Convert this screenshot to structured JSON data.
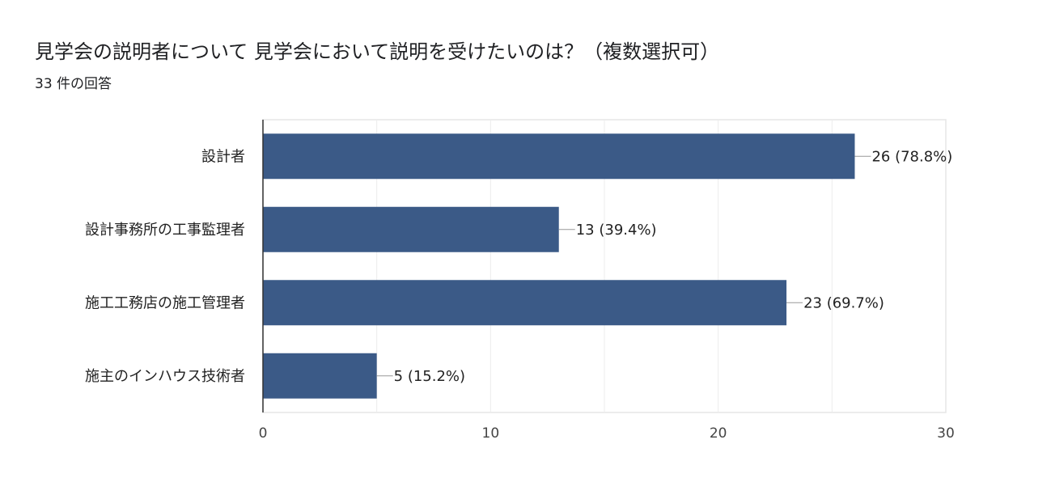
{
  "header": {
    "title": "見学会の説明者について 見学会において説明を受けたいのは？（複数選択可）",
    "subtitle": "33 件の回答"
  },
  "chart_data": {
    "type": "bar",
    "orientation": "horizontal",
    "categories": [
      "設計者",
      "設計事務所の工事監理者",
      "施工工務店の施工管理者",
      "施主のインハウス技術者"
    ],
    "values": [
      26,
      13,
      23,
      5
    ],
    "data_labels": [
      "26 (78.8%)",
      "13 (39.4%)",
      "23 (69.7%)",
      "5 (15.2%)"
    ],
    "xlim": [
      0,
      30
    ],
    "xticks": [
      0,
      10,
      20,
      30
    ],
    "tick_labels": [
      "0",
      "10",
      "20",
      "30"
    ],
    "grid": true,
    "bar_color": "#3b5a87",
    "legend": "none"
  }
}
